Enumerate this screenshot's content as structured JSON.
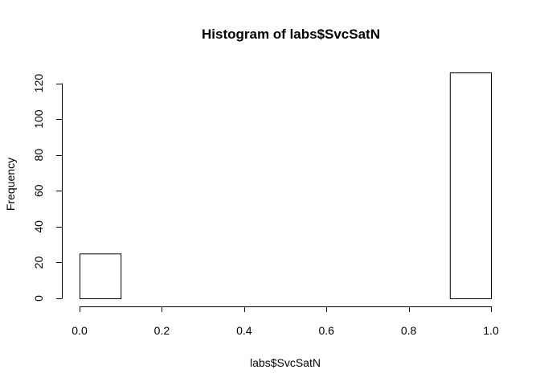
{
  "chart_data": {
    "type": "bar",
    "title": "Histogram of labs$SvcSatN",
    "xlabel": "labs$SvcSatN",
    "ylabel": "Frequency",
    "bins": [
      {
        "x0": 0.0,
        "x1": 0.1,
        "count": 25
      },
      {
        "x0": 0.1,
        "x1": 0.2,
        "count": 0
      },
      {
        "x0": 0.2,
        "x1": 0.3,
        "count": 0
      },
      {
        "x0": 0.3,
        "x1": 0.4,
        "count": 0
      },
      {
        "x0": 0.4,
        "x1": 0.5,
        "count": 0
      },
      {
        "x0": 0.5,
        "x1": 0.6,
        "count": 0
      },
      {
        "x0": 0.6,
        "x1": 0.7,
        "count": 0
      },
      {
        "x0": 0.7,
        "x1": 0.8,
        "count": 0
      },
      {
        "x0": 0.8,
        "x1": 0.9,
        "count": 0
      },
      {
        "x0": 0.9,
        "x1": 1.0,
        "count": 126
      }
    ],
    "xlim": [
      0.0,
      1.0
    ],
    "ylim": [
      0,
      126
    ],
    "x_ticks": [
      0.0,
      0.2,
      0.4,
      0.6,
      0.8,
      1.0
    ],
    "x_tick_labels": [
      "0.0",
      "0.2",
      "0.4",
      "0.6",
      "0.8",
      "1.0"
    ],
    "y_ticks": [
      0,
      20,
      40,
      60,
      80,
      100,
      120
    ],
    "y_tick_labels": [
      "0",
      "20",
      "40",
      "60",
      "80",
      "100",
      "120"
    ],
    "grid": false,
    "legend": "none"
  }
}
